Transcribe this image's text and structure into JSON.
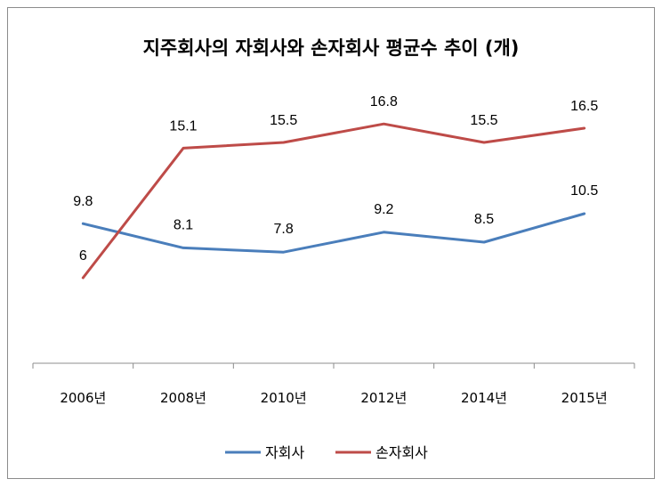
{
  "chart_data": {
    "type": "line",
    "title": "지주회사의 자회사와 손자회사 평균수 추이 (개)",
    "xlabel": "",
    "ylabel": "",
    "categories": [
      "2006년",
      "2008년",
      "2010년",
      "2012년",
      "2014년",
      "2015년"
    ],
    "series": [
      {
        "name": "자회사",
        "color": "#4a7ebb",
        "values": [
          9.8,
          8.1,
          7.8,
          9.2,
          8.5,
          10.5
        ],
        "labels": [
          "9.8",
          "8.1",
          "7.8",
          "9.2",
          "8.5",
          "10.5"
        ]
      },
      {
        "name": "손자회사",
        "color": "#be4b48",
        "values": [
          6,
          15.1,
          15.5,
          16.8,
          15.5,
          16.5
        ],
        "labels": [
          "6",
          "15.1",
          "15.5",
          "16.8",
          "15.5",
          "16.5"
        ]
      }
    ],
    "ylim": [
      0,
      18
    ],
    "grid": false,
    "legend": "bottom"
  }
}
